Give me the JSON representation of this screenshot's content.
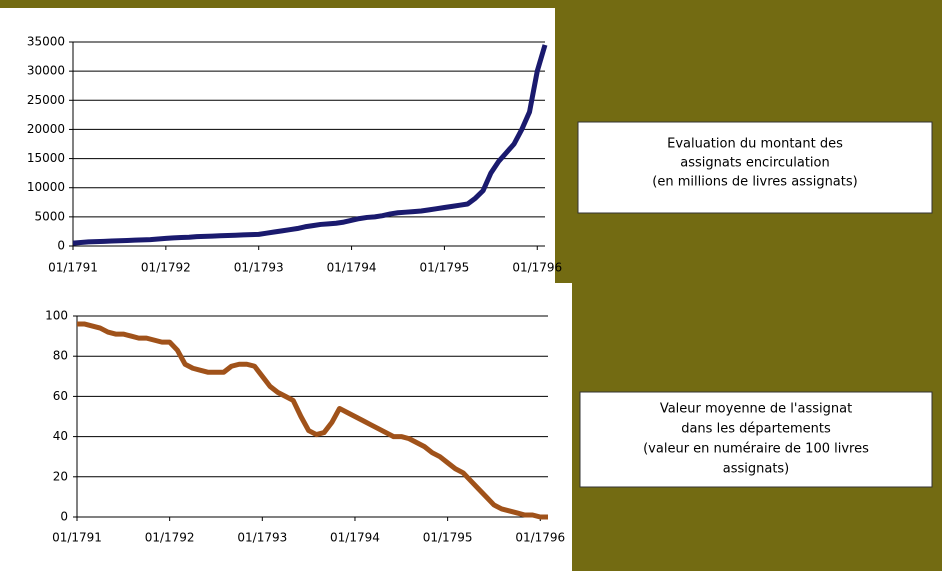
{
  "chart_data": [
    {
      "type": "line",
      "x": [
        "1791-01",
        "1791-02",
        "1791-03",
        "1791-04",
        "1791-05",
        "1791-06",
        "1791-07",
        "1791-08",
        "1791-09",
        "1791-10",
        "1791-11",
        "1791-12",
        "1792-01",
        "1792-02",
        "1792-03",
        "1792-04",
        "1792-05",
        "1792-06",
        "1792-07",
        "1792-08",
        "1792-09",
        "1792-10",
        "1792-11",
        "1792-12",
        "1793-01",
        "1793-02",
        "1793-03",
        "1793-04",
        "1793-05",
        "1793-06",
        "1793-07",
        "1793-08",
        "1793-09",
        "1793-10",
        "1793-11",
        "1793-12",
        "1794-01",
        "1794-02",
        "1794-03",
        "1794-04",
        "1794-05",
        "1794-06",
        "1794-07",
        "1794-08",
        "1794-09",
        "1794-10",
        "1794-11",
        "1794-12",
        "1795-01",
        "1795-02",
        "1795-03",
        "1795-04",
        "1795-05",
        "1795-06",
        "1795-07",
        "1795-08",
        "1795-09",
        "1795-10",
        "1795-11",
        "1795-12",
        "1796-01",
        "1796-02"
      ],
      "series": [
        {
          "color": "#1a1a6e",
          "values": [
            500,
            600,
            700,
            750,
            800,
            850,
            900,
            950,
            1000,
            1050,
            1100,
            1200,
            1300,
            1400,
            1450,
            1500,
            1600,
            1650,
            1700,
            1750,
            1800,
            1850,
            1900,
            1950,
            2000,
            2200,
            2400,
            2600,
            2800,
            3000,
            3300,
            3500,
            3700,
            3800,
            3900,
            4100,
            4400,
            4700,
            4900,
            5000,
            5200,
            5500,
            5700,
            5800,
            5900,
            6000,
            6200,
            6400,
            6600,
            6800,
            7000,
            7200,
            8200,
            9500,
            12500,
            14500,
            16000,
            17500,
            20000,
            23000,
            30000,
            34500
          ]
        }
      ],
      "xlim": [
        "1791-01",
        "1796-02"
      ],
      "xticks": [
        {
          "value": "1791-01",
          "label": "01/1791"
        },
        {
          "value": "1792-01",
          "label": "01/1792"
        },
        {
          "value": "1793-01",
          "label": "01/1793"
        },
        {
          "value": "1794-01",
          "label": "01/1794"
        },
        {
          "value": "1795-01",
          "label": "01/1795"
        },
        {
          "value": "1796-01",
          "label": "01/1796"
        }
      ],
      "ylim": [
        0,
        35000
      ],
      "yticks": [
        0,
        5000,
        10000,
        15000,
        20000,
        25000,
        30000,
        35000
      ],
      "grid": true,
      "annotation": [
        "Evaluation du montant des",
        "assignats encirculation",
        "(en millions de livres assignats)"
      ]
    },
    {
      "type": "line",
      "x": [
        "1791-01",
        "1791-02",
        "1791-03",
        "1791-04",
        "1791-05",
        "1791-06",
        "1791-07",
        "1791-08",
        "1791-09",
        "1791-10",
        "1791-11",
        "1791-12",
        "1792-01",
        "1792-02",
        "1792-03",
        "1792-04",
        "1792-05",
        "1792-06",
        "1792-07",
        "1792-08",
        "1792-09",
        "1792-10",
        "1792-11",
        "1792-12",
        "1793-01",
        "1793-02",
        "1793-03",
        "1793-04",
        "1793-05",
        "1793-06",
        "1793-07",
        "1793-08",
        "1793-09",
        "1793-10",
        "1793-11",
        "1793-12",
        "1794-01",
        "1794-02",
        "1794-03",
        "1794-04",
        "1794-05",
        "1794-06",
        "1794-07",
        "1794-08",
        "1794-09",
        "1794-10",
        "1794-11",
        "1794-12",
        "1795-01",
        "1795-02",
        "1795-03",
        "1795-04",
        "1795-05",
        "1795-06",
        "1795-07",
        "1795-08",
        "1795-09",
        "1795-10",
        "1795-11",
        "1795-12",
        "1796-01",
        "1796-02"
      ],
      "series": [
        {
          "color": "#a0521a",
          "values": [
            96,
            96,
            95,
            94,
            92,
            91,
            91,
            90,
            89,
            89,
            88,
            87,
            87,
            83,
            76,
            74,
            73,
            72,
            72,
            72,
            75,
            76,
            76,
            75,
            70,
            65,
            62,
            60,
            58,
            50,
            43,
            41,
            42,
            47,
            54,
            52,
            50,
            48,
            46,
            44,
            42,
            40,
            40,
            39,
            37,
            35,
            32,
            30,
            27,
            24,
            22,
            18,
            14,
            10,
            6,
            4,
            3,
            2,
            1,
            1,
            0,
            0
          ]
        }
      ],
      "xlim": [
        "1791-01",
        "1796-02"
      ],
      "xticks": [
        {
          "value": "1791-01",
          "label": "01/1791"
        },
        {
          "value": "1792-01",
          "label": "01/1792"
        },
        {
          "value": "1793-01",
          "label": "01/1793"
        },
        {
          "value": "1794-01",
          "label": "01/1794"
        },
        {
          "value": "1795-01",
          "label": "01/1795"
        },
        {
          "value": "1796-01",
          "label": "01/1796"
        }
      ],
      "ylim": [
        0,
        100
      ],
      "yticks": [
        0,
        20,
        40,
        60,
        80,
        100
      ],
      "grid": true,
      "annotation": [
        "Valeur moyenne de l'assignat",
        "dans les départements",
        "(valeur en numéraire de 100 livres",
        "assignats)"
      ]
    }
  ]
}
